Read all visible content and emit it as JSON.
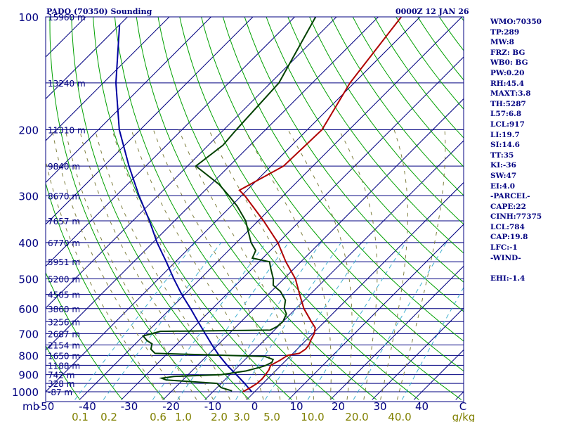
{
  "header": {
    "title": "PADQ (70350) Sounding",
    "time": "0000Z 12 JAN 26"
  },
  "colors": {
    "frame": "#000080",
    "isobar": "#000080",
    "isotherm": "#000080",
    "dry_adiabat": "#00a000",
    "moist_adiabat": "#7f7f3f",
    "mixing_ratio": "#40b0d0",
    "temperature": "#b00000",
    "dewpoint": "#004000",
    "parcel": "#0000a0",
    "q_labels": "#808000"
  },
  "chart_data": {
    "type": "skew-t",
    "pressure_levels": [
      100,
      200,
      300,
      400,
      500,
      600,
      700,
      800,
      900,
      1000
    ],
    "pressure_tick_labels": [
      "100",
      "200",
      "300",
      "400",
      "500",
      "600",
      "700",
      "800",
      "900",
      "1000"
    ],
    "pressure_unit": "mb",
    "height_labels": [
      {
        "p": 100,
        "label": "15960 m"
      },
      {
        "p": 150,
        "label": "13240 m"
      },
      {
        "p": 200,
        "label": "11310 m"
      },
      {
        "p": 250,
        "label": "9840 m"
      },
      {
        "p": 300,
        "label": "8670 m"
      },
      {
        "p": 350,
        "label": "7657 m"
      },
      {
        "p": 400,
        "label": "6770 m"
      },
      {
        "p": 450,
        "label": "5951 m"
      },
      {
        "p": 500,
        "label": "5200 m"
      },
      {
        "p": 550,
        "label": "4505 m"
      },
      {
        "p": 600,
        "label": "3860 m"
      },
      {
        "p": 650,
        "label": "3256 m"
      },
      {
        "p": 700,
        "label": "2687 m"
      },
      {
        "p": 750,
        "label": "2154 m"
      },
      {
        "p": 800,
        "label": "1650 m"
      },
      {
        "p": 850,
        "label": "1188 m"
      },
      {
        "p": 900,
        "label": "742 m"
      },
      {
        "p": 950,
        "label": "328 m"
      },
      {
        "p": 1000,
        "label": "-87 m"
      }
    ],
    "temperature_ticks": [
      -50,
      -40,
      -30,
      -20,
      -10,
      0,
      10,
      20,
      30,
      40
    ],
    "temperature_tick_labels": [
      "-50",
      "-40",
      "-30",
      "-20",
      "-10",
      "0",
      "10",
      "20",
      "30",
      "40",
      "C"
    ],
    "mixing_ratio_labels": [
      "0.1",
      "0.2",
      "0.6",
      "1.0",
      "2.0",
      "3.0",
      "5.0",
      "10.0",
      "20.0",
      "40.0",
      "g/kg"
    ],
    "mixing_ratio_values": [
      0.1,
      0.2,
      0.6,
      1.0,
      2.0,
      3.0,
      5.0,
      10.0,
      20.0,
      40.0
    ],
    "temperature_range_at_1000mb": [
      -50,
      50
    ],
    "pressure_range": [
      100,
      1050
    ],
    "temperature_profile": [
      {
        "p": 1000,
        "t": -2.8
      },
      {
        "p": 975,
        "t": -2.0
      },
      {
        "p": 950,
        "t": -1.4
      },
      {
        "p": 925,
        "t": -1.3
      },
      {
        "p": 900,
        "t": -1.5
      },
      {
        "p": 875,
        "t": -1.8
      },
      {
        "p": 850,
        "t": -2.5
      },
      {
        "p": 825,
        "t": -1.5
      },
      {
        "p": 800,
        "t": -0.8
      },
      {
        "p": 790,
        "t": 1.5
      },
      {
        "p": 770,
        "t": 2.0
      },
      {
        "p": 750,
        "t": 1.8
      },
      {
        "p": 725,
        "t": 1.0
      },
      {
        "p": 700,
        "t": 0.4
      },
      {
        "p": 675,
        "t": -0.8
      },
      {
        "p": 650,
        "t": -3.2
      },
      {
        "p": 600,
        "t": -8.1
      },
      {
        "p": 550,
        "t": -12.5
      },
      {
        "p": 500,
        "t": -17.2
      },
      {
        "p": 450,
        "t": -23.6
      },
      {
        "p": 400,
        "t": -30.1
      },
      {
        "p": 350,
        "t": -38.7
      },
      {
        "p": 300,
        "t": -49.2
      },
      {
        "p": 290,
        "t": -51.8
      },
      {
        "p": 250,
        "t": -47.0
      },
      {
        "p": 200,
        "t": -46.5
      },
      {
        "p": 150,
        "t": -51.0
      },
      {
        "p": 100,
        "t": -54.5
      }
    ],
    "dewpoint_profile": [
      {
        "p": 995,
        "td": -5.6
      },
      {
        "p": 975,
        "td": -9.0
      },
      {
        "p": 950,
        "td": -11.0
      },
      {
        "p": 930,
        "td": -24.0
      },
      {
        "p": 920,
        "td": -25.5
      },
      {
        "p": 910,
        "td": -23.0
      },
      {
        "p": 900,
        "td": -12.0
      },
      {
        "p": 880,
        "td": -7.0
      },
      {
        "p": 860,
        "td": -4.5
      },
      {
        "p": 850,
        "td": -3.6
      },
      {
        "p": 835,
        "td": -2.9
      },
      {
        "p": 820,
        "td": -3.3
      },
      {
        "p": 805,
        "td": -6.0
      },
      {
        "p": 790,
        "td": -33.0
      },
      {
        "p": 770,
        "td": -35.0
      },
      {
        "p": 745,
        "td": -36.0
      },
      {
        "p": 730,
        "td": -38.0
      },
      {
        "p": 710,
        "td": -40.0
      },
      {
        "p": 700,
        "td": -38.5
      },
      {
        "p": 690,
        "td": -37.0
      },
      {
        "p": 685,
        "td": -11.0
      },
      {
        "p": 670,
        "td": -10.2
      },
      {
        "p": 650,
        "td": -10.0
      },
      {
        "p": 620,
        "td": -11.0
      },
      {
        "p": 600,
        "td": -12.8
      },
      {
        "p": 570,
        "td": -14.5
      },
      {
        "p": 540,
        "td": -17.8
      },
      {
        "p": 520,
        "td": -21.0
      },
      {
        "p": 500,
        "td": -22.5
      },
      {
        "p": 470,
        "td": -25.5
      },
      {
        "p": 450,
        "td": -27.5
      },
      {
        "p": 440,
        "td": -32.5
      },
      {
        "p": 420,
        "td": -33.5
      },
      {
        "p": 400,
        "td": -36.5
      },
      {
        "p": 380,
        "td": -39.0
      },
      {
        "p": 350,
        "td": -43.0
      },
      {
        "p": 320,
        "td": -48.5
      },
      {
        "p": 300,
        "td": -53.0
      },
      {
        "p": 280,
        "td": -58.0
      },
      {
        "p": 250,
        "td": -68.0
      },
      {
        "p": 220,
        "td": -66.5
      },
      {
        "p": 200,
        "td": -67.0
      },
      {
        "p": 150,
        "td": -68.0
      },
      {
        "p": 100,
        "td": -75.0
      }
    ],
    "parcel_profile": [
      {
        "p": 1000,
        "t": -0.7
      },
      {
        "p": 950,
        "t": -4.4
      },
      {
        "p": 900,
        "t": -8.5
      },
      {
        "p": 850,
        "t": -12.9
      },
      {
        "p": 800,
        "t": -17.2
      },
      {
        "p": 750,
        "t": -21.4
      },
      {
        "p": 700,
        "t": -25.7
      },
      {
        "p": 650,
        "t": -30.3
      },
      {
        "p": 600,
        "t": -35.2
      },
      {
        "p": 550,
        "t": -40.7
      },
      {
        "p": 500,
        "t": -46.3
      },
      {
        "p": 450,
        "t": -52.2
      },
      {
        "p": 400,
        "t": -59.0
      },
      {
        "p": 350,
        "t": -66.0
      },
      {
        "p": 300,
        "t": -74.5
      },
      {
        "p": 250,
        "t": -84.0
      },
      {
        "p": 200,
        "t": -95.0
      },
      {
        "p": 150,
        "t": -107.0
      },
      {
        "p": 105,
        "t": -120.0
      }
    ],
    "dry_adiabats_theta_k": [
      230,
      240,
      250,
      260,
      270,
      280,
      290,
      300,
      310,
      320,
      330,
      340,
      350,
      360,
      370,
      380,
      390,
      400,
      410,
      420,
      430,
      440,
      450,
      460,
      470,
      480,
      490,
      500
    ],
    "moist_adiabats_start_c": [
      -20,
      -16,
      -12,
      -8,
      -4,
      0,
      4,
      8,
      12,
      16,
      20,
      24,
      28,
      32,
      36
    ]
  },
  "stats": [
    "WMO:70350",
    "TP:289",
    "MW:8",
    "FRZ: BG",
    "WB0: BG",
    "PW:0.20",
    "RH:45.4",
    "MAXT:3.8",
    "TH:5287",
    "L57:6.8",
    "LCL:917",
    "LI:19.7",
    "SI:14.6",
    "TT:35",
    "KI:-36",
    "SW:47",
    "EI:4.0",
    "-PARCEL-",
    "CAPE:22",
    "CINH:77375",
    "LCL:784",
    "CAP:19.8",
    "LFC:-1",
    "-WIND-",
    "",
    "EHI:-1.4"
  ]
}
